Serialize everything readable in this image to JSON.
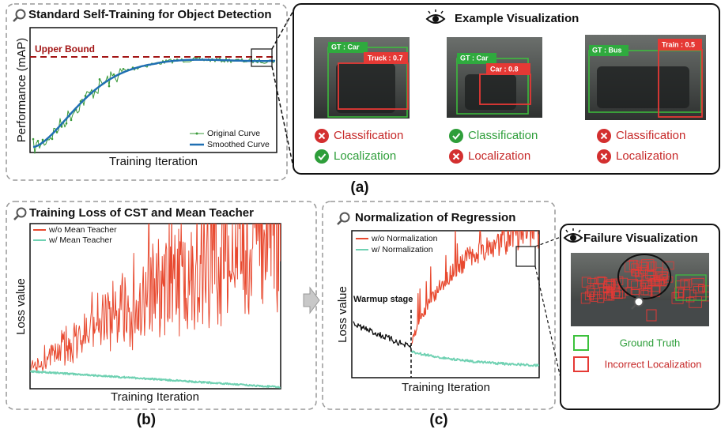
{
  "panel_a": {
    "title": "Standard Self-Training for Object Detection",
    "upper_bound": "Upper Bound",
    "y_label": "Performance (mAP)",
    "x_label": "Training Iteration",
    "legend": [
      "Original Curve",
      "Smoothed Curve"
    ]
  },
  "example": {
    "title": "Example Visualization",
    "images": [
      {
        "gt": "GT : Car",
        "pred": "Truck : 0.7",
        "classification": "Classification",
        "localization": "Localization"
      },
      {
        "gt": "GT : Car",
        "pred": "Car : 0.8",
        "classification": "Classification",
        "localization": "Localization"
      },
      {
        "gt": "GT : Bus",
        "pred": "Train : 0.5",
        "classification": "Classification",
        "localization": "Localization"
      }
    ]
  },
  "caption_a": "(a)",
  "panel_b": {
    "title": "Training Loss of CST and Mean Teacher",
    "legend": [
      "w/o Mean Teacher",
      "w/ Mean Teacher"
    ],
    "y_label": "Loss value",
    "x_label": "Training Iteration"
  },
  "caption_b": "(b)",
  "panel_c": {
    "title": "Normalization of Regression",
    "legend": [
      "w/o Normalization",
      "w/ Normalization"
    ],
    "warmup": "Warmup stage",
    "y_label": "Loss value",
    "x_label": "Training Iteration"
  },
  "failure": {
    "title": "Failure Visualization",
    "legend": [
      "Ground Truth",
      "Incorrect Localization"
    ]
  },
  "caption_c": "(c)"
}
